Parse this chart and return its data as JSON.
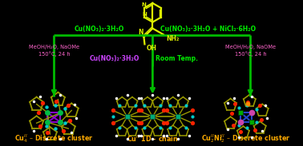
{
  "bg_color": "#000000",
  "arrow_color": "#00bb00",
  "reagent_green": "#00ee00",
  "condition_pink": "#ff66cc",
  "room_temp_purple": "#cc44ff",
  "room_temp_green": "#00ee00",
  "molecule_yellow": "#ddee00",
  "label_orange": "#ffaa00",
  "figsize": [
    3.78,
    1.83
  ],
  "dpi": 100,
  "left_reagent": "Cu(NO₃)₂·3H₂O",
  "right_reagent": "Cu(NO₃)₂·3H₂O + NiCl₂·6H₂O",
  "left_cond1": "MeOH/H₂O, NaOMe",
  "left_cond2": "150°C, 24 h",
  "right_cond1": "MeOH/H₂O, NaOMe",
  "right_cond2": "150°C, 24 h",
  "bottom_reagent": "Cu(NO₃)₂·3H₂O",
  "bottom_condition": "Room Temp."
}
